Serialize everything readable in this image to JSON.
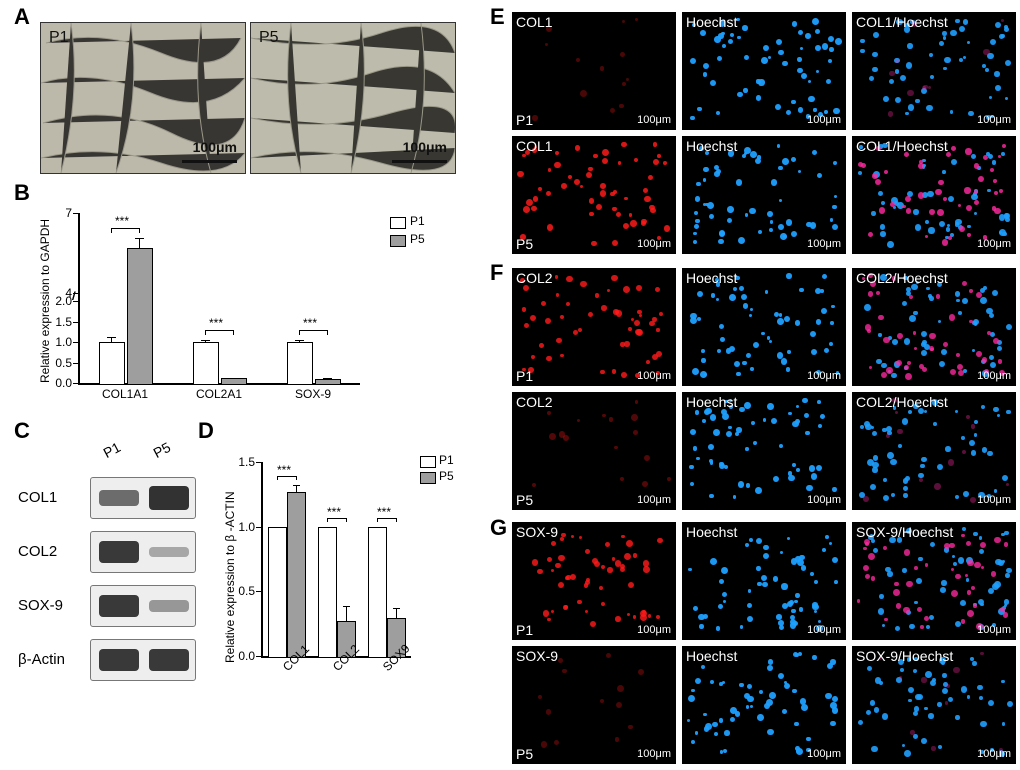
{
  "labels": {
    "A": "A",
    "B": "B",
    "C": "C",
    "D": "D",
    "E": "E",
    "F": "F",
    "G": "G"
  },
  "panelA": {
    "p1_label": "P1",
    "p5_label": "P5",
    "scale_text": "100μm"
  },
  "chartB": {
    "ylabel": "Relative expression to GAPDH",
    "yticks_upper": [
      "4",
      "7"
    ],
    "yticks_lower": [
      "0.0",
      "0.5",
      "1.0",
      "1.5",
      "2.0"
    ],
    "categories": [
      "COL1A1",
      "COL2A1",
      "SOX-9"
    ],
    "p1": [
      1.0,
      1.0,
      1.0
    ],
    "p5": [
      5.7,
      0.11,
      0.1
    ],
    "p1_err": [
      0.12,
      0.05,
      0.05
    ],
    "p5_err": [
      0.35,
      0.02,
      0.02
    ],
    "sig": [
      "***",
      "***",
      "***"
    ],
    "legend": {
      "p1": "P1",
      "p5": "P5"
    },
    "colors": {
      "p1": "#ffffff",
      "p5": "#9e9e9e",
      "axis": "#000000"
    }
  },
  "panelC": {
    "lanes": [
      "P1",
      "P5"
    ],
    "rows": [
      "COL1",
      "COL2",
      "SOX-9",
      "β-Actin"
    ],
    "intensity": {
      "COL1": [
        0.55,
        0.95
      ],
      "COL2": [
        0.9,
        0.15
      ],
      "SOX-9": [
        0.9,
        0.25
      ],
      "beta_actin": [
        0.9,
        0.9
      ]
    }
  },
  "chartD": {
    "ylabel": "Relative expression to β -ACTIN",
    "yticks": [
      "0.0",
      "0.5",
      "1.0",
      "1.5"
    ],
    "categories": [
      "COL1",
      "COL2",
      "SOX9"
    ],
    "p1": [
      1.0,
      1.0,
      1.0
    ],
    "p5": [
      1.27,
      0.27,
      0.29
    ],
    "p1_err": [
      0.0,
      0.0,
      0.0
    ],
    "p5_err": [
      0.05,
      0.12,
      0.08
    ],
    "sig": [
      "***",
      "***",
      "***"
    ],
    "legend": {
      "p1": "P1",
      "p5": "P5"
    }
  },
  "fluo": {
    "scale_text": "100μm",
    "E": {
      "stain": "COL1",
      "rows": [
        "P1",
        "P5"
      ],
      "cols": [
        "COL1",
        "Hoechst",
        "COL1/Hoechst"
      ],
      "red_intensity": [
        0.05,
        0.85
      ]
    },
    "F": {
      "stain": "COL2",
      "rows": [
        "P1",
        "P5"
      ],
      "cols": [
        "COL2",
        "Hoechst",
        "COL2/Hoechst"
      ],
      "red_intensity": [
        0.8,
        0.1
      ]
    },
    "G": {
      "stain": "SOX-9",
      "rows": [
        "P1",
        "P5"
      ],
      "cols": [
        "SOX-9",
        "Hoechst",
        "SOX-9/Hoechst"
      ],
      "red_intensity": [
        0.8,
        0.05
      ]
    }
  }
}
